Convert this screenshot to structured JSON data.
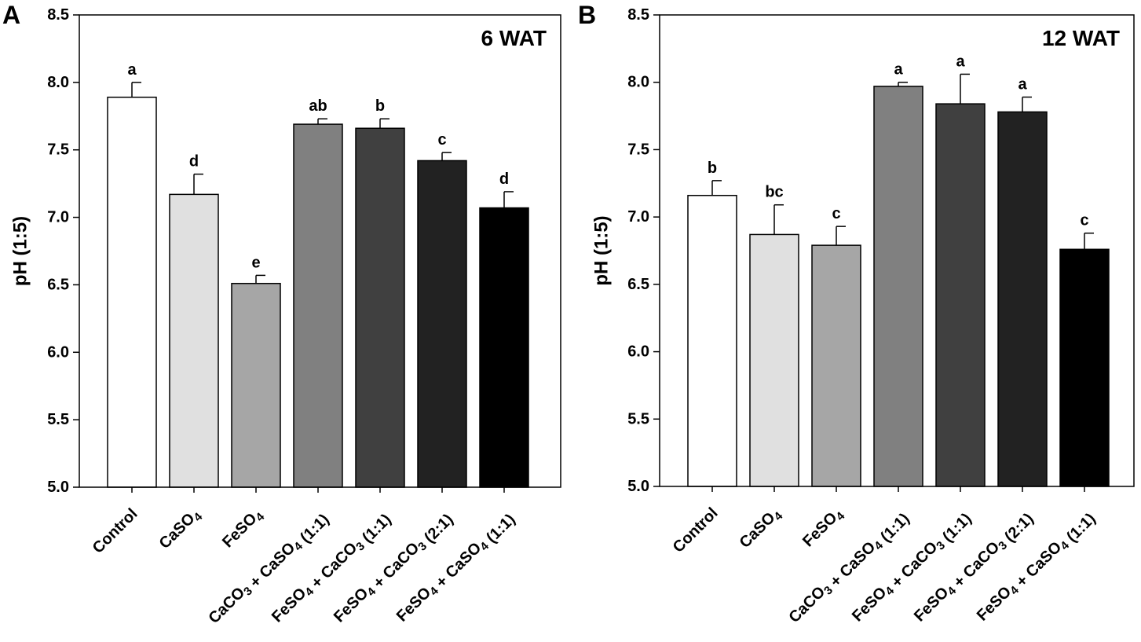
{
  "chart_data": [
    {
      "type": "bar",
      "panel_label": "A",
      "title": "6 WAT",
      "ylabel": "pH (1:5)",
      "xlabel": "",
      "ylim": [
        5.0,
        8.5
      ],
      "yticks": [
        "5.0",
        "5.5",
        "6.0",
        "6.5",
        "7.0",
        "7.5",
        "8.0",
        "8.5"
      ],
      "categories": [
        {
          "name": "Control",
          "parts": [
            [
              "Control",
              false
            ]
          ]
        },
        {
          "name": "CaSO4",
          "parts": [
            [
              "CaSO",
              false
            ],
            [
              "4",
              true
            ]
          ]
        },
        {
          "name": "FeSO4",
          "parts": [
            [
              "FeSO",
              false
            ],
            [
              "4",
              true
            ]
          ]
        },
        {
          "name": "CaCO3 + CaSO4 (1:1)",
          "parts": [
            [
              "CaCO",
              false
            ],
            [
              "3",
              true
            ],
            [
              " + CaSO",
              false
            ],
            [
              "4",
              true
            ],
            [
              " (1:1)",
              false
            ]
          ]
        },
        {
          "name": "FeSO4 + CaCO3 (1:1)",
          "parts": [
            [
              "FeSO",
              false
            ],
            [
              "4",
              true
            ],
            [
              " + CaCO",
              false
            ],
            [
              "3",
              true
            ],
            [
              " (1:1)",
              false
            ]
          ]
        },
        {
          "name": "FeSO4 + CaCO3 (2:1)",
          "parts": [
            [
              "FeSO",
              false
            ],
            [
              "4",
              true
            ],
            [
              " + CaCO",
              false
            ],
            [
              "3",
              true
            ],
            [
              " (2:1)",
              false
            ]
          ]
        },
        {
          "name": "FeSO4 + CaSO4 (1:1)",
          "parts": [
            [
              "FeSO",
              false
            ],
            [
              "4",
              true
            ],
            [
              " + CaSO",
              false
            ],
            [
              "4",
              true
            ],
            [
              " (1:1)",
              false
            ]
          ]
        }
      ],
      "values": [
        7.89,
        7.17,
        6.51,
        7.69,
        7.66,
        7.42,
        7.07
      ],
      "errors": [
        0.11,
        0.15,
        0.06,
        0.04,
        0.07,
        0.06,
        0.12
      ],
      "significance": [
        "a",
        "d",
        "e",
        "ab",
        "b",
        "c",
        "d"
      ],
      "colors": [
        "#ffffff",
        "#e0e0e0",
        "#a6a6a6",
        "#808080",
        "#404040",
        "#222222",
        "#000000"
      ]
    },
    {
      "type": "bar",
      "panel_label": "B",
      "title": "12 WAT",
      "ylabel": "pH (1:5)",
      "xlabel": "",
      "ylim": [
        5.0,
        8.5
      ],
      "yticks": [
        "5.0",
        "5.5",
        "6.0",
        "6.5",
        "7.0",
        "7.5",
        "8.0",
        "8.5"
      ],
      "categories": [
        {
          "name": "Control",
          "parts": [
            [
              "Control",
              false
            ]
          ]
        },
        {
          "name": "CaSO4",
          "parts": [
            [
              "CaSO",
              false
            ],
            [
              "4",
              true
            ]
          ]
        },
        {
          "name": "FeSO4",
          "parts": [
            [
              "FeSO",
              false
            ],
            [
              "4",
              true
            ]
          ]
        },
        {
          "name": "CaCO3 + CaSO4 (1:1)",
          "parts": [
            [
              "CaCO",
              false
            ],
            [
              "3",
              true
            ],
            [
              " + CaSO",
              false
            ],
            [
              "4",
              true
            ],
            [
              " (1:1)",
              false
            ]
          ]
        },
        {
          "name": "FeSO4 + CaCO3 (1:1)",
          "parts": [
            [
              "FeSO",
              false
            ],
            [
              "4",
              true
            ],
            [
              " + CaCO",
              false
            ],
            [
              "3",
              true
            ],
            [
              " (1:1)",
              false
            ]
          ]
        },
        {
          "name": "FeSO4 + CaCO3 (2:1)",
          "parts": [
            [
              "FeSO",
              false
            ],
            [
              "4",
              true
            ],
            [
              " + CaCO",
              false
            ],
            [
              "3",
              true
            ],
            [
              " (2:1)",
              false
            ]
          ]
        },
        {
          "name": "FeSO4 + CaSO4 (1:1)",
          "parts": [
            [
              "FeSO",
              false
            ],
            [
              "4",
              true
            ],
            [
              " + CaSO",
              false
            ],
            [
              "4",
              true
            ],
            [
              " (1:1)",
              false
            ]
          ]
        }
      ],
      "values": [
        7.16,
        6.87,
        6.79,
        7.97,
        7.84,
        7.78,
        6.76
      ],
      "errors": [
        0.11,
        0.22,
        0.14,
        0.03,
        0.22,
        0.11,
        0.12
      ],
      "significance": [
        "b",
        "bc",
        "c",
        "a",
        "a",
        "a",
        "c"
      ],
      "colors": [
        "#ffffff",
        "#e0e0e0",
        "#a6a6a6",
        "#808080",
        "#404040",
        "#222222",
        "#000000"
      ]
    }
  ]
}
